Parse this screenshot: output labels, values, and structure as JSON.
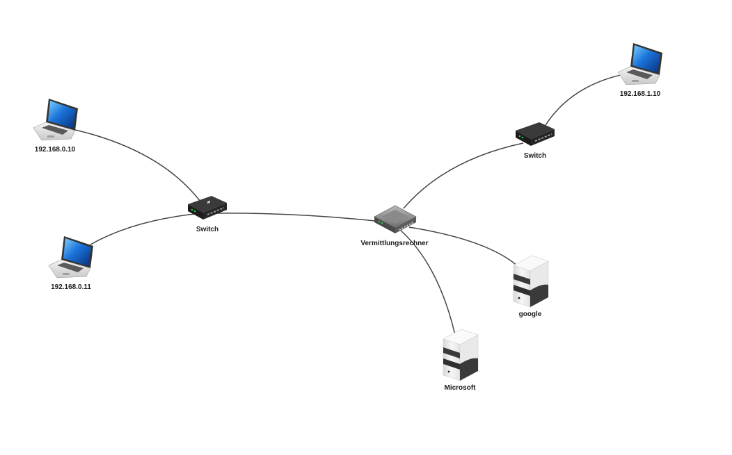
{
  "diagram": {
    "nodes": [
      {
        "id": "laptop1",
        "type": "laptop",
        "label": "192.168.0.10"
      },
      {
        "id": "laptop2",
        "type": "laptop",
        "label": "192.168.0.11"
      },
      {
        "id": "switch1",
        "type": "switch",
        "label": "Switch"
      },
      {
        "id": "router",
        "type": "router",
        "label": "Vermittlungsrechner"
      },
      {
        "id": "switch2",
        "type": "switch",
        "label": "Switch"
      },
      {
        "id": "laptop3",
        "type": "laptop",
        "label": "192.168.1.10"
      },
      {
        "id": "server_google",
        "type": "server",
        "label": "google"
      },
      {
        "id": "server_ms",
        "type": "server",
        "label": "Microsoft"
      }
    ],
    "edges": [
      {
        "from": "laptop1",
        "to": "switch1"
      },
      {
        "from": "laptop2",
        "to": "switch1"
      },
      {
        "from": "switch1",
        "to": "router"
      },
      {
        "from": "router",
        "to": "switch2"
      },
      {
        "from": "switch2",
        "to": "laptop3"
      },
      {
        "from": "router",
        "to": "server_google"
      },
      {
        "from": "router",
        "to": "server_ms"
      }
    ]
  }
}
